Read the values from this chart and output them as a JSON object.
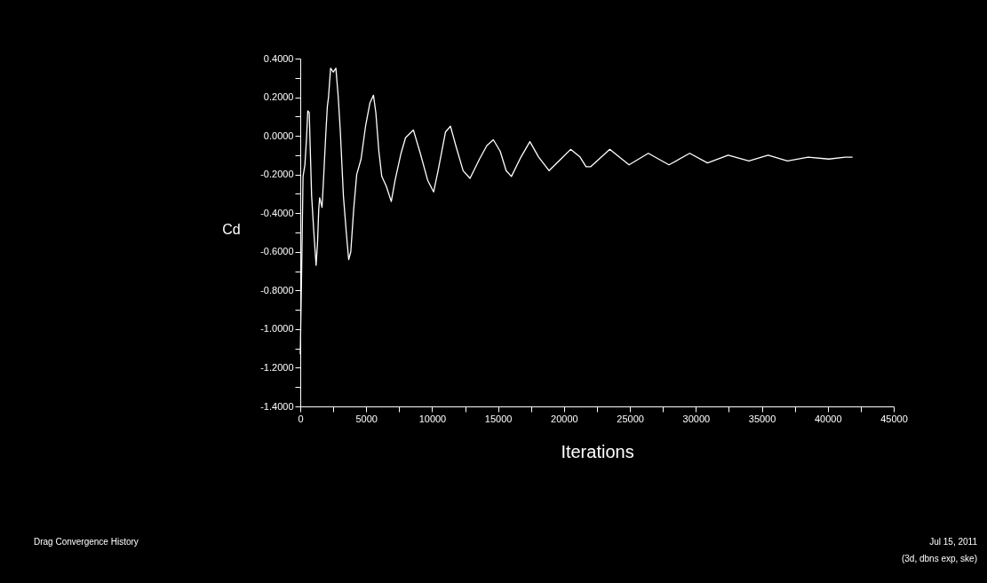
{
  "chart_data": {
    "type": "line",
    "xlabel": "Iterations",
    "ylabel": "Cd",
    "xlim": [
      0,
      45000
    ],
    "xticks": [
      0,
      {
        "value": 2500,
        "label": null
      },
      5000,
      {
        "value": 7500,
        "label": null
      },
      10000,
      {
        "value": 12500,
        "label": null
      },
      15000,
      {
        "value": 17500,
        "label": null
      },
      20000,
      {
        "value": 22500,
        "label": null
      },
      25000,
      {
        "value": 27500,
        "label": null
      },
      30000,
      {
        "value": 32500,
        "label": null
      },
      35000,
      {
        "value": 37500,
        "label": null
      },
      40000,
      {
        "value": 42500,
        "label": null
      },
      45000
    ],
    "ylim": [
      -1.4,
      0.4
    ],
    "yticks": [
      {
        "value": -1.4,
        "label": "-1.4000"
      },
      {
        "value": -1.3,
        "label": null
      },
      {
        "value": -1.2,
        "label": "-1.2000"
      },
      {
        "value": -1.1,
        "label": null
      },
      {
        "value": -1.0,
        "label": "-1.0000"
      },
      {
        "value": -0.9,
        "label": null
      },
      {
        "value": -0.8,
        "label": "-0.8000"
      },
      {
        "value": -0.7,
        "label": null
      },
      {
        "value": -0.6,
        "label": "-0.6000"
      },
      {
        "value": -0.5,
        "label": null
      },
      {
        "value": -0.4,
        "label": "-0.4000"
      },
      {
        "value": -0.3,
        "label": null
      },
      {
        "value": -0.2,
        "label": "-0.2000"
      },
      {
        "value": -0.1,
        "label": null
      },
      {
        "value": 0.0,
        "label": "0.0000"
      },
      {
        "value": 0.1,
        "label": null
      },
      {
        "value": 0.2,
        "label": "0.2000"
      },
      {
        "value": 0.3,
        "label": null
      },
      {
        "value": 0.4,
        "label": "0.4000"
      }
    ],
    "grid": false,
    "marker": "none",
    "line_style": "solid",
    "annotations": [
      "Drag Convergence History",
      "Jul 15, 2011",
      "(3d, dbns exp, ske)"
    ],
    "series": [
      {
        "color": "#ffffff",
        "x": [
          0,
          120,
          210,
          350,
          460,
          570,
          680,
          750,
          860,
          1020,
          1130,
          1200,
          1310,
          1400,
          1470,
          1650,
          1760,
          1920,
          2050,
          2140,
          2300,
          2500,
          2700,
          2880,
          3040,
          3270,
          3490,
          3670,
          3830,
          4050,
          4280,
          4610,
          4950,
          5280,
          5550,
          5730,
          5960,
          6180,
          6520,
          6900,
          7190,
          7640,
          7980,
          8580,
          9100,
          9660,
          10110,
          10450,
          11010,
          11390,
          11790,
          12350,
          12870,
          13590,
          14150,
          14640,
          15160,
          15610,
          16010,
          16730,
          17410,
          18080,
          18870,
          19760,
          20500,
          21220,
          21670,
          22010,
          23470,
          24930,
          26390,
          27960,
          29530,
          30880,
          32450,
          34020,
          35480,
          36940,
          38510,
          40080,
          41320,
          41880
        ],
        "values": [
          -1.13,
          -0.63,
          -0.21,
          -0.15,
          -0.03,
          0.13,
          0.12,
          -0.05,
          -0.31,
          -0.49,
          -0.6,
          -0.67,
          -0.55,
          -0.38,
          -0.32,
          -0.37,
          -0.23,
          -0.01,
          0.15,
          0.2,
          0.35,
          0.33,
          0.35,
          0.2,
          0.02,
          -0.31,
          -0.5,
          -0.64,
          -0.6,
          -0.38,
          -0.2,
          -0.12,
          0.05,
          0.17,
          0.21,
          0.12,
          -0.08,
          -0.21,
          -0.26,
          -0.34,
          -0.23,
          -0.09,
          -0.01,
          0.03,
          -0.09,
          -0.23,
          -0.29,
          -0.18,
          0.02,
          0.05,
          -0.05,
          -0.18,
          -0.22,
          -0.12,
          -0.05,
          -0.02,
          -0.08,
          -0.18,
          -0.21,
          -0.11,
          -0.03,
          -0.11,
          -0.18,
          -0.12,
          -0.07,
          -0.11,
          -0.16,
          -0.16,
          -0.07,
          -0.15,
          -0.09,
          -0.15,
          -0.09,
          -0.14,
          -0.1,
          -0.13,
          -0.1,
          -0.13,
          -0.11,
          -0.12,
          -0.11,
          -0.11
        ]
      }
    ]
  }
}
